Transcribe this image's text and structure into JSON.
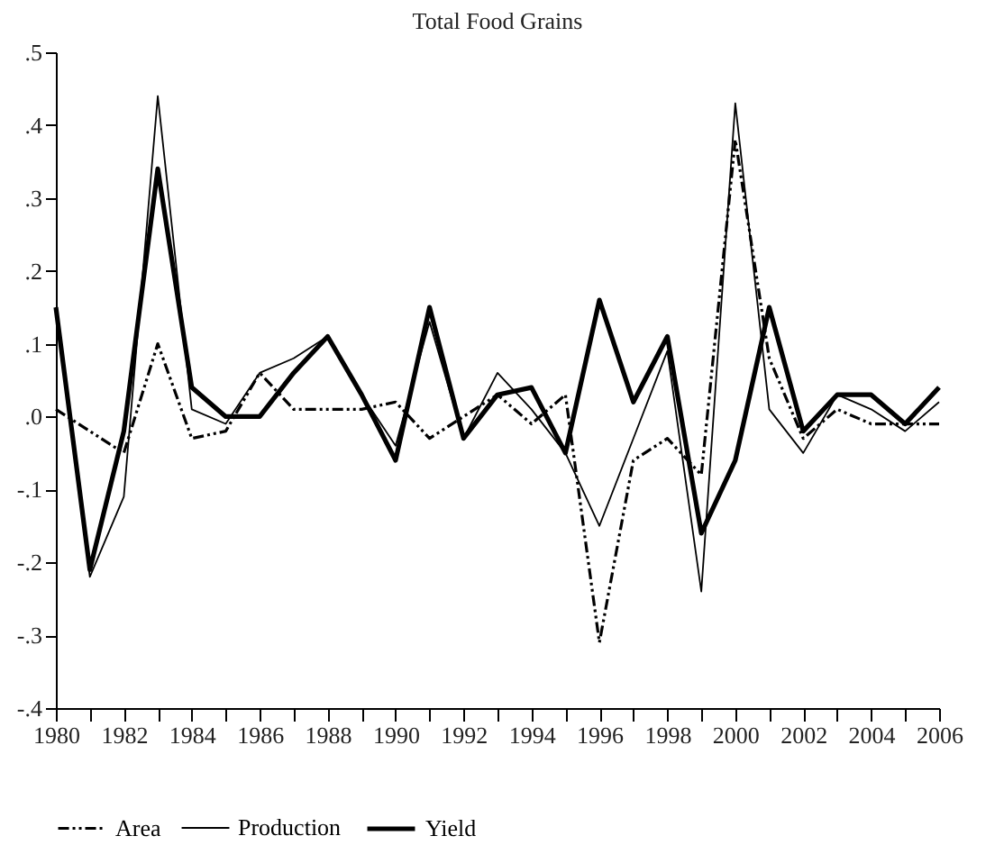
{
  "chart_data": {
    "type": "line",
    "title": "Total Food Grains",
    "x": [
      1980,
      1981,
      1982,
      1983,
      1984,
      1985,
      1986,
      1987,
      1988,
      1989,
      1990,
      1991,
      1992,
      1993,
      1994,
      1995,
      1996,
      1997,
      1998,
      1999,
      2000,
      2001,
      2002,
      2003,
      2004,
      2005,
      2006
    ],
    "series": [
      {
        "name": "Area",
        "color": "#000000",
        "line_style": "dashed",
        "values": [
          0.01,
          -0.02,
          -0.05,
          0.1,
          -0.03,
          -0.02,
          0.06,
          0.01,
          0.01,
          0.01,
          0.02,
          -0.03,
          0.0,
          0.03,
          -0.01,
          0.03,
          -0.31,
          -0.06,
          -0.03,
          -0.08,
          0.38,
          0.08,
          -0.03,
          0.01,
          -0.01,
          -0.01,
          -0.01
        ]
      },
      {
        "name": "Production",
        "color": "#000000",
        "line_style": "solid",
        "values": [
          0.15,
          -0.22,
          -0.11,
          0.44,
          0.01,
          -0.01,
          0.06,
          0.08,
          0.11,
          0.03,
          -0.04,
          0.13,
          -0.03,
          0.06,
          0.01,
          -0.05,
          -0.15,
          -0.03,
          0.09,
          -0.24,
          0.43,
          0.01,
          -0.05,
          0.03,
          0.01,
          -0.02,
          0.02
        ]
      },
      {
        "name": "Yield",
        "color": "#000000",
        "line_style": "solid",
        "values": [
          0.15,
          -0.21,
          -0.02,
          0.34,
          0.04,
          0.0,
          0.0,
          0.06,
          0.11,
          0.03,
          -0.06,
          0.15,
          -0.03,
          0.03,
          0.04,
          -0.05,
          0.16,
          0.02,
          0.11,
          -0.16,
          -0.06,
          0.15,
          -0.02,
          0.03,
          0.03,
          -0.01,
          0.04
        ]
      }
    ],
    "xlim": [
      1980,
      2006
    ],
    "xticks": [
      1980,
      {
        "value": 1981,
        "label": null
      },
      1982,
      {
        "value": 1983,
        "label": null
      },
      1984,
      {
        "value": 1985,
        "label": null
      },
      1986,
      {
        "value": 1987,
        "label": null
      },
      1988,
      {
        "value": 1989,
        "label": null
      },
      1990,
      {
        "value": 1991,
        "label": null
      },
      1992,
      {
        "value": 1993,
        "label": null
      },
      1994,
      {
        "value": 1995,
        "label": null
      },
      1996,
      {
        "value": 1997,
        "label": null
      },
      1998,
      {
        "value": 1999,
        "label": null
      },
      2000,
      {
        "value": 2001,
        "label": null
      },
      2002,
      {
        "value": 2003,
        "label": null
      },
      2004,
      {
        "value": 2005,
        "label": null
      },
      2006
    ],
    "ylim": [
      -0.4,
      0.5
    ],
    "yticks": [
      {
        "value": -0.4,
        "label": "-.4"
      },
      {
        "value": -0.3,
        "label": "-.3"
      },
      {
        "value": -0.2,
        "label": "-.2"
      },
      {
        "value": -0.1,
        "label": "-.1"
      },
      {
        "value": 0,
        "label": ".0"
      },
      {
        "value": 0.1,
        "label": ".1"
      },
      {
        "value": 0.2,
        "label": ".2"
      },
      {
        "value": 0.3,
        "label": ".3"
      },
      {
        "value": 0.4,
        "label": ".4"
      },
      {
        "value": 0.5,
        "label": ".5"
      }
    ],
    "grid": false,
    "legend": "bottom",
    "marker": "none"
  }
}
